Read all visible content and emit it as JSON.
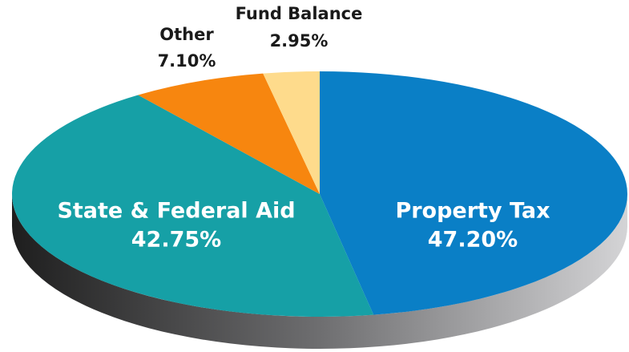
{
  "chart_data": {
    "type": "pie",
    "categories": [
      "Property Tax",
      "State & Federal Aid",
      "Other",
      "Fund Balance"
    ],
    "values": [
      47.2,
      42.75,
      7.1,
      2.95
    ],
    "value_labels": [
      "47.20%",
      "42.75%",
      "7.10%",
      "2.95%"
    ],
    "colors": [
      "#0a7fc6",
      "#16a0a6",
      "#f7860f",
      "#fedb8c"
    ]
  }
}
